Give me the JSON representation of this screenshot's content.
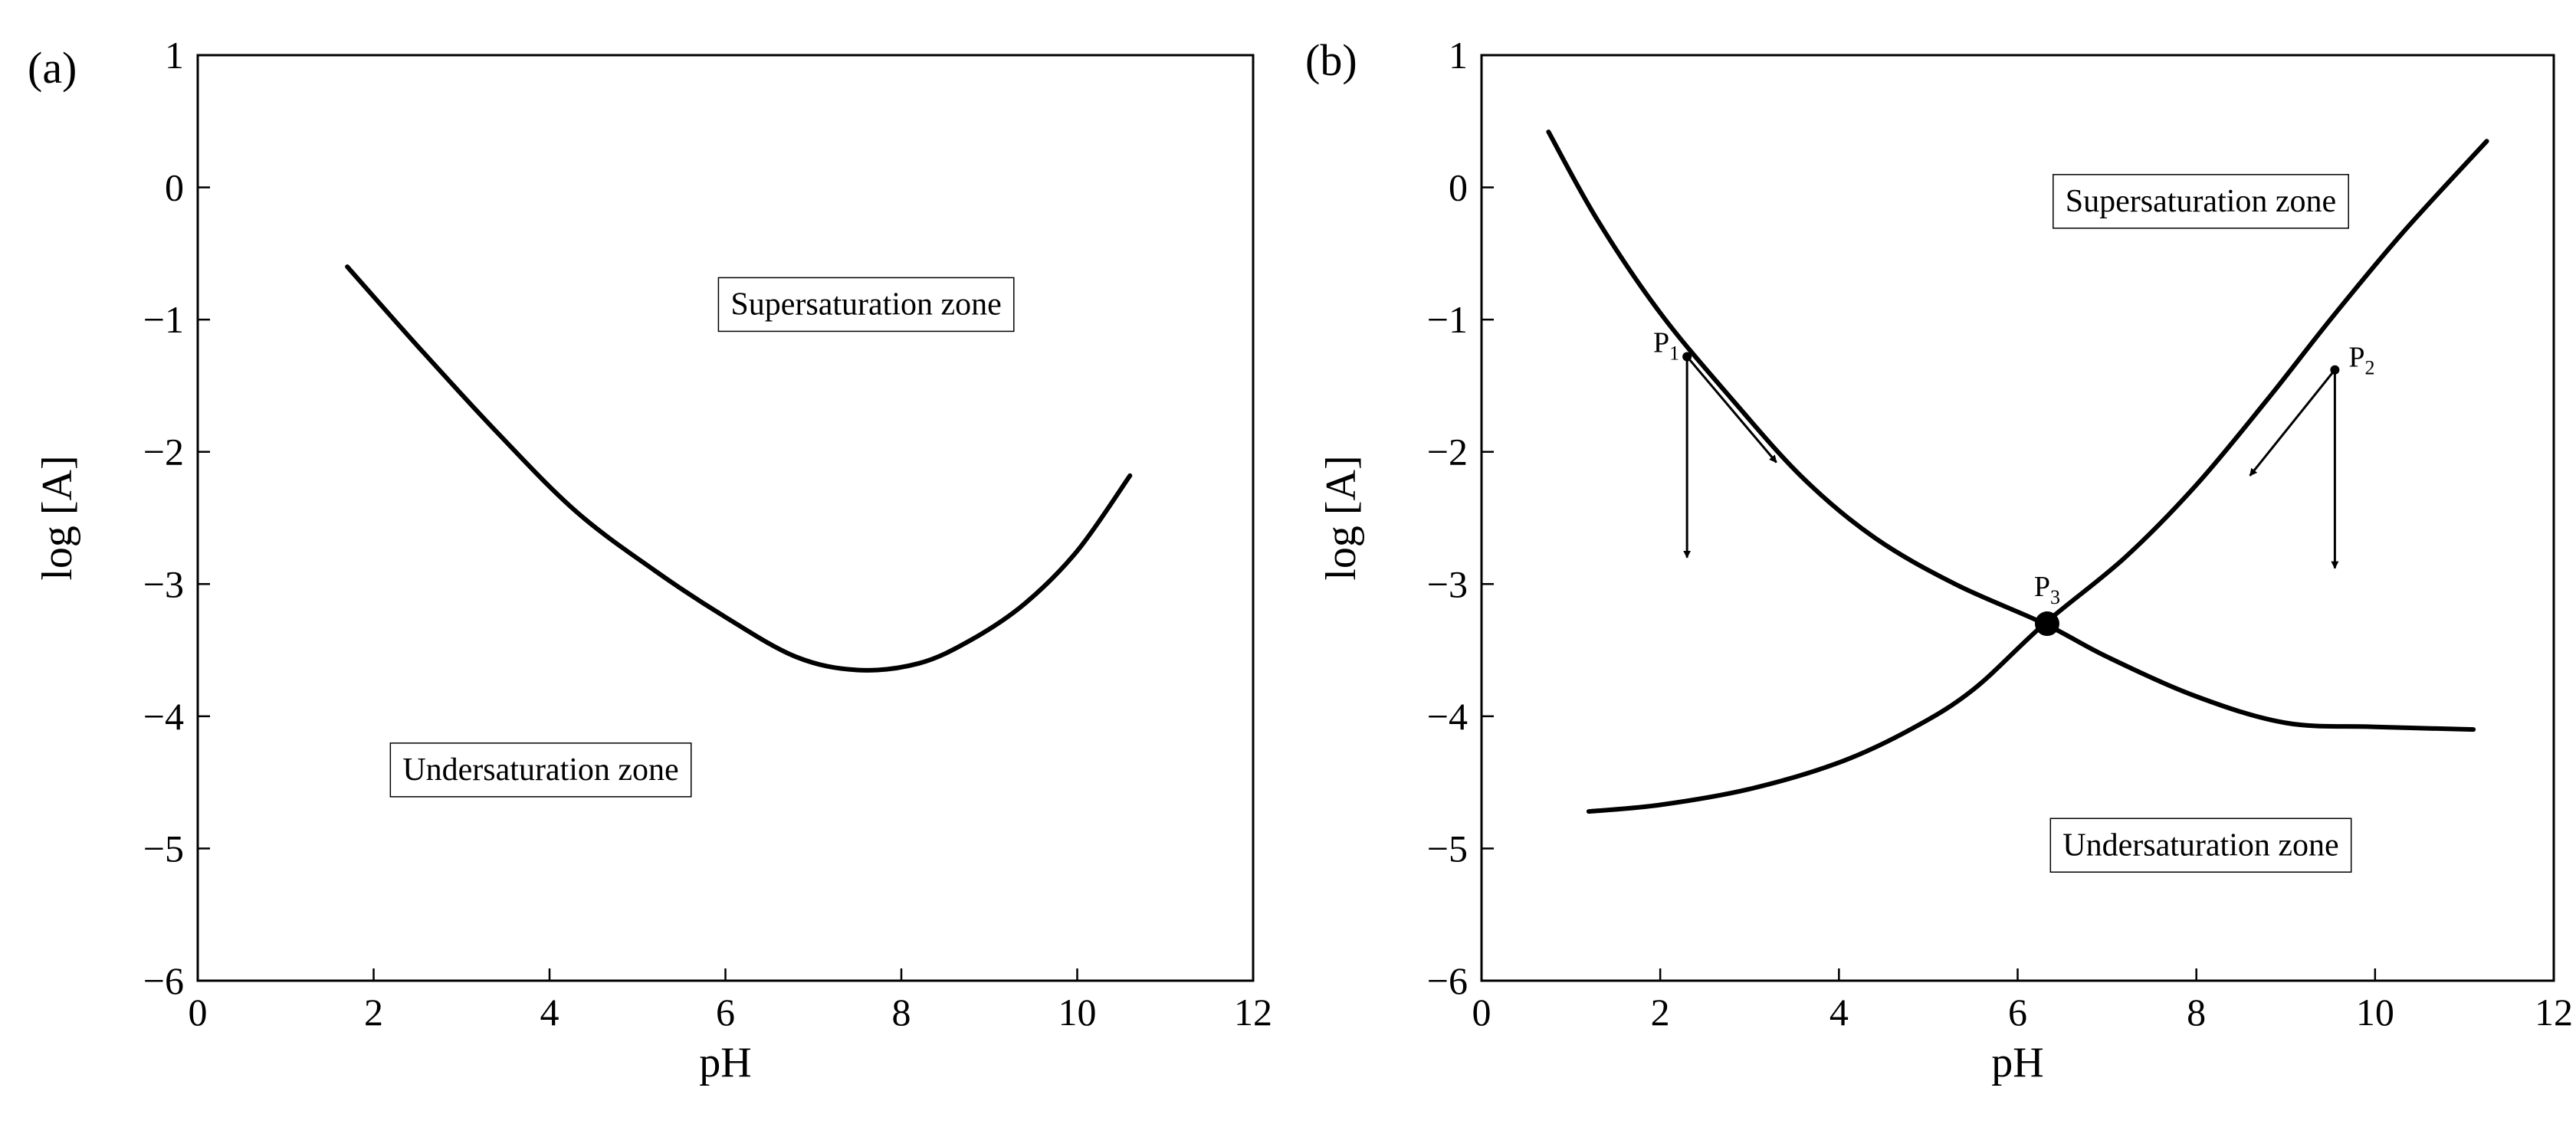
{
  "chart_data": [
    {
      "panel_label": "(a)",
      "type": "line",
      "xlabel": "pH",
      "ylabel": "log [A]",
      "xlim": [
        0,
        12
      ],
      "ylim": [
        -6,
        1
      ],
      "xticks": [
        0,
        2,
        4,
        6,
        8,
        10,
        12
      ],
      "yticks": [
        1,
        0,
        -1,
        -2,
        -3,
        -4,
        -5,
        -6
      ],
      "grid": false,
      "series": [
        {
          "points": [
            [
              1.7,
              -0.6
            ],
            [
              2.5,
              -1.2
            ],
            [
              3.4,
              -1.85
            ],
            [
              4.3,
              -2.45
            ],
            [
              5.2,
              -2.9
            ],
            [
              6.0,
              -3.25
            ],
            [
              6.8,
              -3.55
            ],
            [
              7.5,
              -3.65
            ],
            [
              8.2,
              -3.6
            ],
            [
              8.8,
              -3.42
            ],
            [
              9.4,
              -3.15
            ],
            [
              10.0,
              -2.75
            ],
            [
              10.6,
              -2.18
            ]
          ]
        }
      ],
      "annotations": [
        {
          "text": "Supersaturation zone",
          "x": 7.6,
          "y": -0.88
        },
        {
          "text": "Undersaturation zone",
          "x": 3.9,
          "y": -4.4
        }
      ]
    },
    {
      "panel_label": "(b)",
      "type": "line",
      "xlabel": "pH",
      "ylabel": "log [A]",
      "xlim": [
        0,
        12
      ],
      "ylim": [
        -6,
        1
      ],
      "xticks": [
        0,
        2,
        4,
        6,
        8,
        10,
        12
      ],
      "yticks": [
        1,
        0,
        -1,
        -2,
        -3,
        -4,
        -5,
        -6
      ],
      "grid": false,
      "series": [
        {
          "points": [
            [
              0.75,
              0.42
            ],
            [
              1.3,
              -0.25
            ],
            [
              2.0,
              -0.95
            ],
            [
              2.8,
              -1.6
            ],
            [
              3.6,
              -2.2
            ],
            [
              4.4,
              -2.65
            ],
            [
              5.3,
              -3.0
            ],
            [
              6.3,
              -3.3
            ],
            [
              7.0,
              -3.55
            ],
            [
              8.0,
              -3.85
            ],
            [
              9.0,
              -4.05
            ],
            [
              10.0,
              -4.08
            ],
            [
              11.1,
              -4.1
            ]
          ]
        },
        {
          "points": [
            [
              1.2,
              -4.72
            ],
            [
              2.0,
              -4.67
            ],
            [
              3.0,
              -4.55
            ],
            [
              4.0,
              -4.35
            ],
            [
              4.8,
              -4.1
            ],
            [
              5.5,
              -3.8
            ],
            [
              6.3,
              -3.3
            ],
            [
              7.2,
              -2.8
            ],
            [
              8.0,
              -2.25
            ],
            [
              8.8,
              -1.6
            ],
            [
              9.5,
              -1.0
            ],
            [
              10.3,
              -0.35
            ],
            [
              11.25,
              0.35
            ]
          ]
        }
      ],
      "points": [
        {
          "label": "P",
          "subscript": "1",
          "x": 2.3,
          "y": -1.28
        },
        {
          "label": "P",
          "subscript": "2",
          "x": 9.55,
          "y": -1.38
        },
        {
          "label": "P",
          "subscript": "3",
          "x": 6.33,
          "y": -3.3
        }
      ],
      "arrows": [
        {
          "from": [
            2.3,
            -1.28
          ],
          "to": [
            2.3,
            -2.8
          ]
        },
        {
          "from": [
            2.3,
            -1.28
          ],
          "to": [
            3.3,
            -2.08
          ]
        },
        {
          "from": [
            9.55,
            -1.38
          ],
          "to": [
            9.55,
            -2.88
          ]
        },
        {
          "from": [
            9.55,
            -1.38
          ],
          "to": [
            8.6,
            -2.18
          ]
        }
      ],
      "annotations": [
        {
          "text": "Supersaturation zone",
          "x": 8.05,
          "y": -0.1
        },
        {
          "text": "Undersaturation zone",
          "x": 8.05,
          "y": -4.97
        }
      ]
    }
  ]
}
